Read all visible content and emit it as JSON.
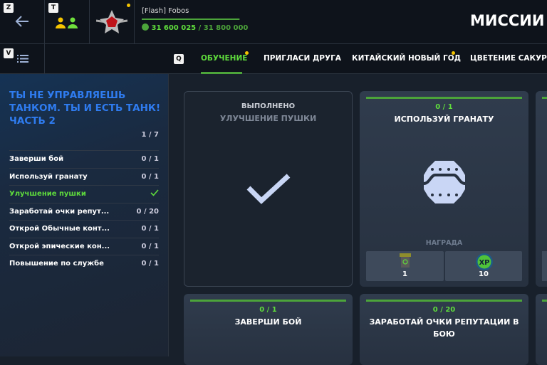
{
  "header": {
    "keys": {
      "back": "Z",
      "team": "T",
      "menu": "V",
      "tabs": "Q"
    },
    "player_name": "[Flash] Fobos",
    "xp_current": "31 600 025",
    "xp_separator": " / ",
    "xp_max": "31 800 000",
    "xp_progress": 0.994,
    "page_title": "МИССИИ"
  },
  "tabs": [
    {
      "label": "ОБУЧЕНИЕ",
      "active": true,
      "dot": true
    },
    {
      "label": "ПРИГЛАСИ ДРУГА"
    },
    {
      "label": "КИТАЙСКИЙ НОВЫЙ ГОД",
      "dot": true
    },
    {
      "label": "ЦВЕТЕНИЕ САКУРЫ"
    }
  ],
  "sidebar": {
    "title": "ТЫ НЕ УПРАВЛЯЕШЬ ТАНКОМ. ТЫ И ЕСТЬ ТАНК! ЧАСТЬ 2",
    "progress": "1 / 7",
    "items": [
      {
        "label": "Заверши бой",
        "value": "0 / 1"
      },
      {
        "label": "Используй гранату",
        "value": "0 / 1"
      },
      {
        "label": "Улучшение пушки",
        "value": "",
        "done": true
      },
      {
        "label": "Заработай очки репут...",
        "value": "0 / 20"
      },
      {
        "label": "Открой Обычные конт...",
        "value": "0 / 1"
      },
      {
        "label": "Открой эпические кон...",
        "value": "0 / 1"
      },
      {
        "label": "Повышение по службе",
        "value": "0 / 1"
      }
    ]
  },
  "cards": [
    {
      "status": "ВЫПОЛНЕНО",
      "title": "УЛУЧШЕНИЕ ПУШКИ",
      "done": true
    },
    {
      "progress": "0 / 1",
      "title": "ИСПОЛЬЗУЙ ГРАНАТУ",
      "reward_label": "НАГРАДА",
      "rewards": [
        {
          "icon": "container-icon",
          "amount": "1"
        },
        {
          "icon": "xp-icon",
          "amount": "10"
        }
      ]
    },
    {
      "progress": "0 / 1",
      "title": "ЗАВЕРШИ БОЙ"
    },
    {
      "progress": "0 / 20",
      "title": "ЗАРАБОТАЙ ОЧКИ РЕПУТАЦИИ В БОЮ"
    }
  ],
  "colors": {
    "accent_green": "#5fdc3c",
    "title_blue": "#2f7cf0",
    "notify": "#f5c400"
  }
}
